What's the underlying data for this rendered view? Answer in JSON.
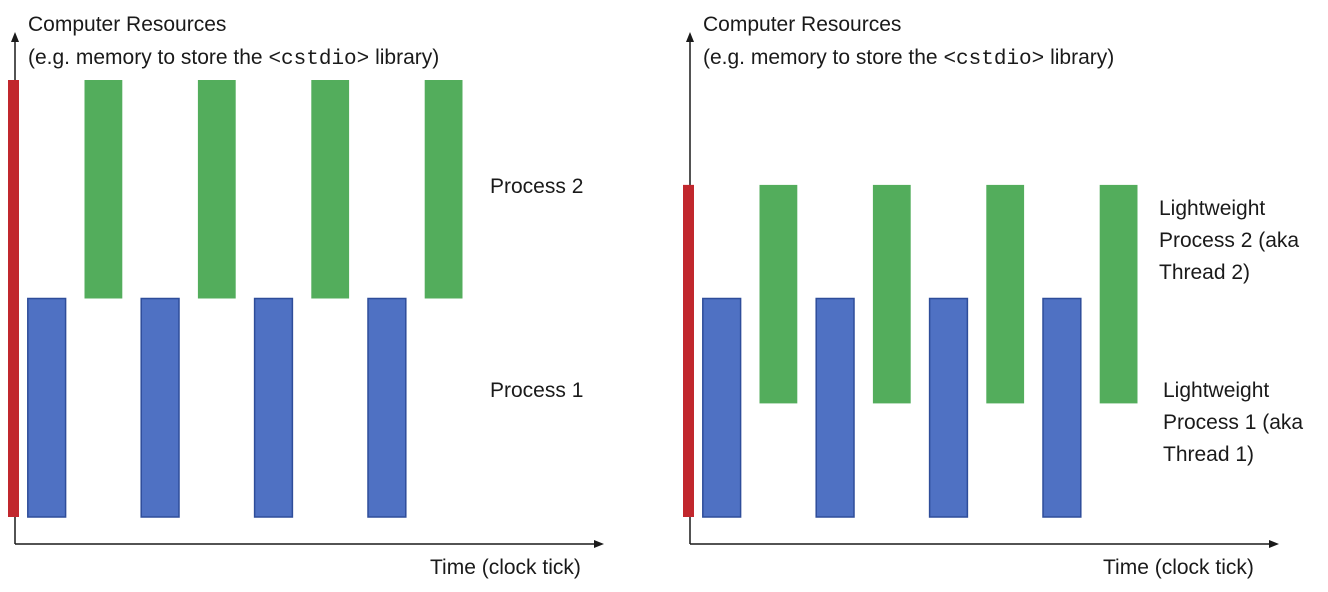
{
  "colors": {
    "process1": "#4f71c3",
    "process1_stroke": "#2e4d9a",
    "process2": "#53ad5c",
    "resource_bar": "#c1272d",
    "axis": "#1a1a1a"
  },
  "panels": [
    {
      "y_axis_title_line1": "Computer Resources",
      "y_axis_title_pre": "(e.g. memory to store the ",
      "y_axis_title_code": "<cstdio>",
      "y_axis_title_post": " library)",
      "x_axis_label": "Time (clock tick)",
      "label_process2": "Process 2",
      "label_process1": "Process 1"
    },
    {
      "y_axis_title_line1": "Computer Resources",
      "y_axis_title_pre": "(e.g. memory to store the ",
      "y_axis_title_code": "<cstdio>",
      "y_axis_title_post": " library)",
      "x_axis_label": "Time (clock tick)",
      "label_process2_lines": [
        "Lightweight",
        "Process 2 (aka",
        "Thread 2)"
      ],
      "label_process1_lines": [
        "Lightweight",
        "Process 1 (aka",
        "Thread 1)"
      ]
    }
  ],
  "chart_data": [
    {
      "type": "timeline",
      "panel": "left",
      "series": [
        {
          "name": "Process 1",
          "intervals": [
            [
              1,
              2
            ],
            [
              4,
              5
            ],
            [
              7,
              8
            ],
            [
              10,
              11
            ]
          ],
          "level": [
            0,
            0.5
          ]
        },
        {
          "name": "Process 2",
          "intervals": [
            [
              2.5,
              3.5
            ],
            [
              5.5,
              6.5
            ],
            [
              8.5,
              9.5
            ],
            [
              11.5,
              12.5
            ]
          ],
          "level": [
            0.5,
            1.0
          ]
        }
      ],
      "resource_extent": [
        0,
        1.0
      ]
    },
    {
      "type": "timeline",
      "panel": "right",
      "series": [
        {
          "name": "Lightweight Process 1 (aka Thread 1)",
          "intervals": [
            [
              1,
              2
            ],
            [
              4,
              5
            ],
            [
              7,
              8
            ],
            [
              10,
              11
            ]
          ],
          "level": [
            0,
            0.5
          ]
        },
        {
          "name": "Lightweight Process 2 (aka Thread 2)",
          "intervals": [
            [
              2.5,
              3.5
            ],
            [
              5.5,
              6.5
            ],
            [
              8.5,
              9.5
            ],
            [
              11.5,
              12.5
            ]
          ],
          "level": [
            0.26,
            0.76
          ]
        }
      ],
      "resource_extent": [
        0,
        0.76
      ]
    }
  ]
}
